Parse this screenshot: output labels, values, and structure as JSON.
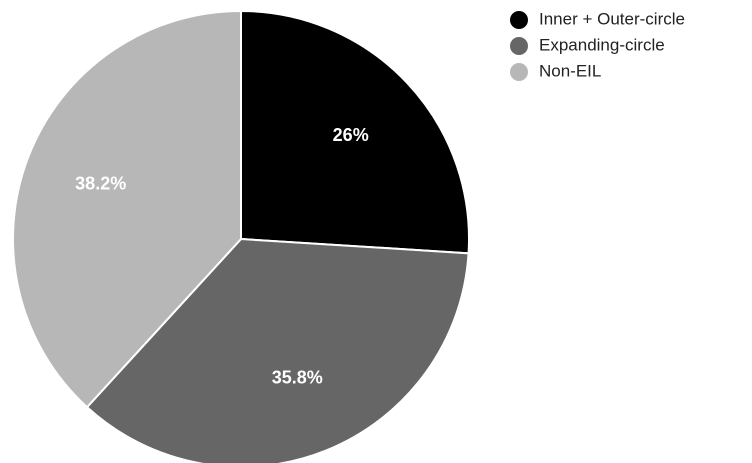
{
  "chart_data": {
    "type": "pie",
    "title": "",
    "slices": [
      {
        "name": "Inner + Outer-circle",
        "value": 26,
        "label": "26%",
        "color": "#000000"
      },
      {
        "name": "Expanding-circle",
        "value": 35.8,
        "label": "35.8%",
        "color": "#666666"
      },
      {
        "name": "Non-EIL",
        "value": 38.2,
        "label": "38.2%",
        "color": "#b7b7b7"
      }
    ],
    "start_angle": "12 o'clock",
    "direction": "clockwise",
    "legend_position": "top-right"
  }
}
